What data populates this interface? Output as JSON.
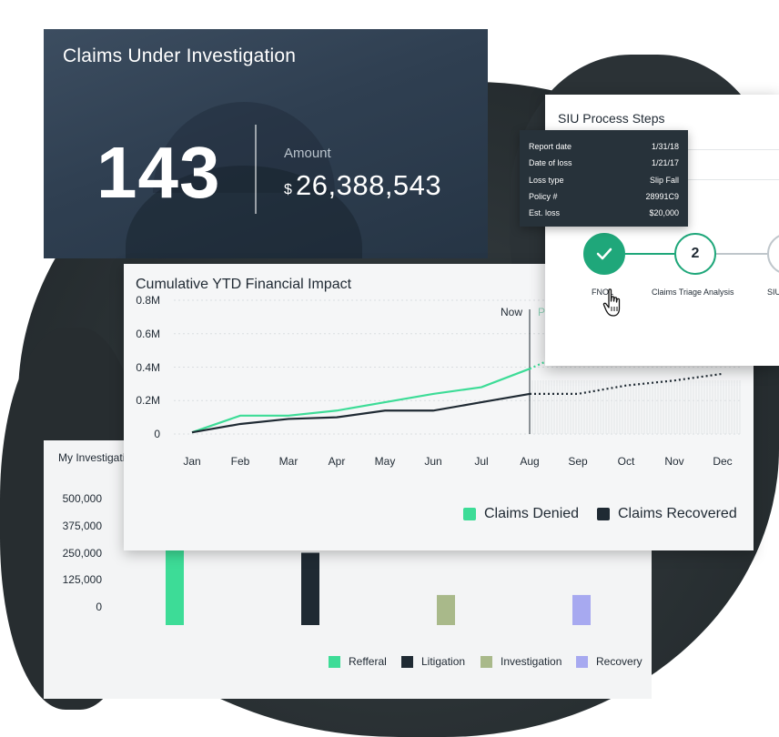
{
  "hero": {
    "title": "Claims Under Investigation",
    "count": "143",
    "amount_label": "Amount",
    "currency": "$",
    "amount": "26,388,543"
  },
  "ytd": {
    "title": "Cumulative YTD Financial Impact",
    "now_label": "Now",
    "projection_label": "Pr",
    "legend": [
      "Claims Denied",
      "Claims Recovered"
    ]
  },
  "investigations": {
    "title": "My Investigati",
    "legend": [
      "Refferal",
      "Litigation",
      "Investigation",
      "Recovery"
    ]
  },
  "siu": {
    "title": "SIU Process Steps",
    "steps": [
      {
        "number": "",
        "label": "FNOL",
        "status": "complete",
        "icon": "check-icon"
      },
      {
        "number": "2",
        "label": "Claims Triage Analysis",
        "status": "next"
      },
      {
        "number": "",
        "label": "SIU",
        "status": "pending"
      }
    ]
  },
  "tooltip": {
    "rows": [
      {
        "label": "Report date",
        "value": "1/31/18"
      },
      {
        "label": "Date of loss",
        "value": "1/21/17"
      },
      {
        "label": "Loss type",
        "value": "Slip Fall"
      },
      {
        "label": "Policy #",
        "value": "28991C9"
      },
      {
        "label": "Est. loss",
        "value": "$20,000"
      }
    ]
  },
  "colors": {
    "accent_green": "#3ddc97",
    "dark_navy": "#1f2a33",
    "investigation_olive": "#a9b98a",
    "recovery_lavender": "#a7a9f0",
    "step_green": "#1fa77a"
  },
  "chart_data": [
    {
      "type": "line",
      "title": "Cumulative YTD Financial Impact",
      "categories": [
        "Jan",
        "Feb",
        "Mar",
        "Apr",
        "May",
        "Jun",
        "Jul",
        "Aug",
        "Sep",
        "Oct",
        "Nov",
        "Dec"
      ],
      "y_ticks": [
        "0",
        "0.2M",
        "0.4M",
        "0.6M",
        "0.8M"
      ],
      "ylim": [
        0,
        0.8
      ],
      "now_after": "Aug",
      "series": [
        {
          "name": "Claims Denied",
          "color": "#3ddc97",
          "values": [
            0.01,
            0.11,
            0.11,
            0.14,
            0.19,
            0.24,
            0.28,
            0.39,
            0.52,
            null,
            null,
            null
          ],
          "projected_from": "Aug"
        },
        {
          "name": "Claims Recovered",
          "color": "#1f2a33",
          "values": [
            0.01,
            0.06,
            0.09,
            0.1,
            0.14,
            0.14,
            0.19,
            0.24,
            0.24,
            0.29,
            0.32,
            0.36
          ],
          "projected_from": "Aug"
        }
      ],
      "legend_position": "bottom-right",
      "grid": true
    },
    {
      "type": "bar",
      "title": "My Investigati",
      "categories": [
        "Refferal",
        "Litigation",
        "Investigation",
        "Recovery"
      ],
      "y_ticks": [
        "0",
        "125,000",
        "250,000",
        "375,000",
        "500,000"
      ],
      "ylim": [
        0,
        500000
      ],
      "values": [
        390000,
        250000,
        55000,
        55000
      ],
      "colors": [
        "#3ddc97",
        "#1f2a33",
        "#a9b98a",
        "#a7a9f0"
      ],
      "legend_position": "bottom-right"
    }
  ]
}
